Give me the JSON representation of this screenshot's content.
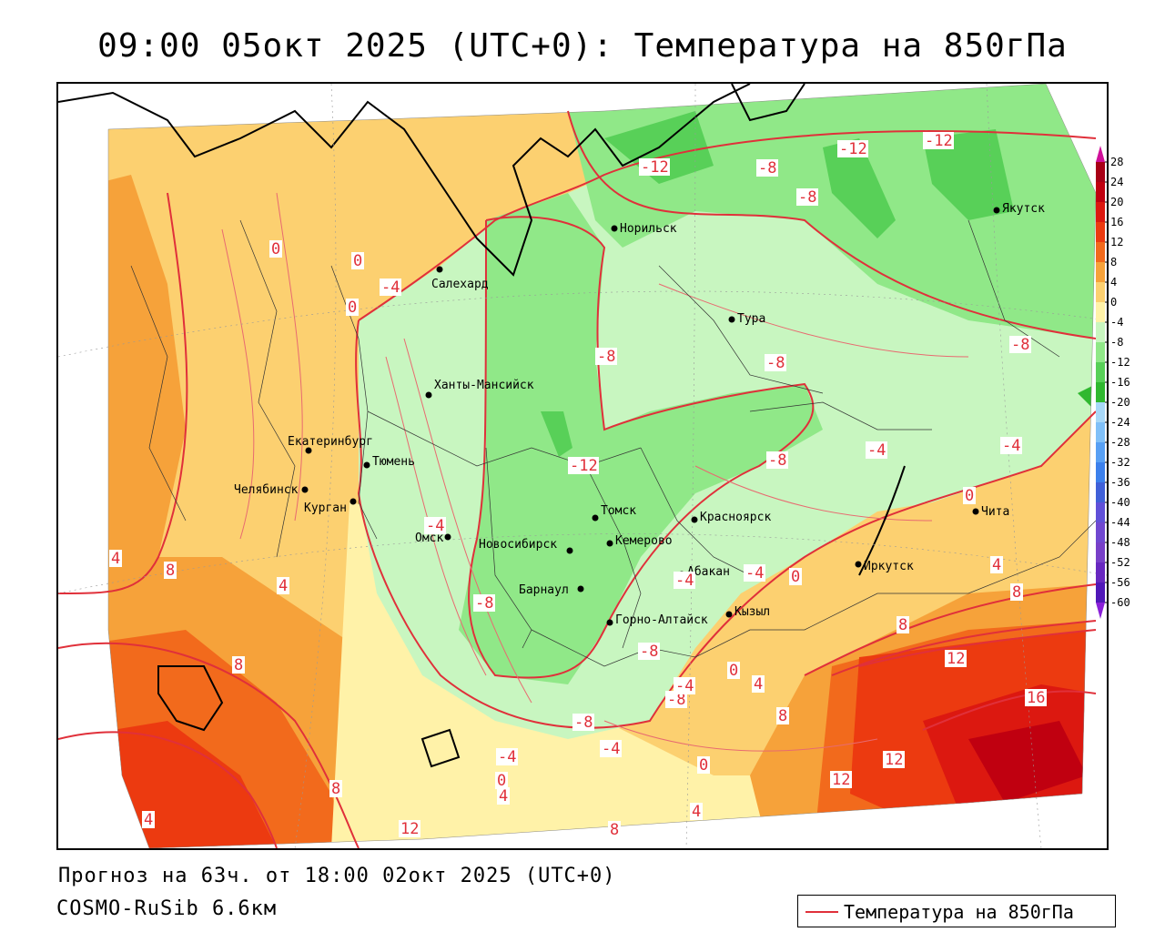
{
  "title": "09:00 05окт 2025 (UTC+0): Температура на 850гПа",
  "forecast_line": "Прогноз на 63ч. от 18:00 02окт 2025 (UTC+0)",
  "model_line": "COSMO-RuSib 6.6км",
  "legend": {
    "label": "Температура на 850гПа",
    "line_color": "#e0303a"
  },
  "colorbar": {
    "ticks": [
      "28",
      "24",
      "20",
      "16",
      "12",
      "8",
      "4",
      "0",
      "-4",
      "-8",
      "-12",
      "-16",
      "-20",
      "-24",
      "-28",
      "-32",
      "-36",
      "-40",
      "-44",
      "-48",
      "-52",
      "-56",
      "-60"
    ],
    "colors": [
      "#a80016",
      "#c00010",
      "#dc1810",
      "#ec3a10",
      "#f26a1c",
      "#f6a23a",
      "#fcd070",
      "#fff2a8",
      "#c8f6c0",
      "#90e888",
      "#58d058",
      "#30b830",
      "#a8d8f8",
      "#80c0f8",
      "#58a0f4",
      "#3c80ec",
      "#4060d8",
      "#6050d8",
      "#7048d0",
      "#7840c8",
      "#6828c0",
      "#5018b8"
    ],
    "top_arrow_color": "#d0109a",
    "bottom_arrow_color": "#8a20d8"
  },
  "cities": [
    {
      "name": "Якутск"
    },
    {
      "name": "Норильск"
    },
    {
      "name": "Салехард"
    },
    {
      "name": "Тура"
    },
    {
      "name": "Ханты-Мансийск"
    },
    {
      "name": "Екатеринбург"
    },
    {
      "name": "Тюмень"
    },
    {
      "name": "Челябинск"
    },
    {
      "name": "Курган"
    },
    {
      "name": "Омск"
    },
    {
      "name": "Томск"
    },
    {
      "name": "Красноярск"
    },
    {
      "name": "Новосибирск"
    },
    {
      "name": "Кемерово"
    },
    {
      "name": "Абакан"
    },
    {
      "name": "Барнаул"
    },
    {
      "name": "Иркутск"
    },
    {
      "name": "Чита"
    },
    {
      "name": "Кызыл"
    },
    {
      "name": "Горно-Алтайск"
    }
  ],
  "isotherm_labels": [
    "-12",
    "-12",
    "-12",
    "-8",
    "-8",
    "0",
    "0",
    "0",
    "-4",
    "-8",
    "-8",
    "-8",
    "-4",
    "0",
    "-12",
    "-8",
    "-4",
    "-4",
    "-4",
    "4",
    "-8",
    "-4",
    "0",
    "8",
    "4",
    "4",
    "8",
    "8",
    "12",
    "16",
    "12",
    "12",
    "-8",
    "0",
    "-8",
    "-8",
    "-4",
    "4",
    "8",
    "-4",
    "-4",
    "0",
    "8",
    "12",
    "4",
    "0",
    "4",
    "4",
    "8",
    "8"
  ]
}
